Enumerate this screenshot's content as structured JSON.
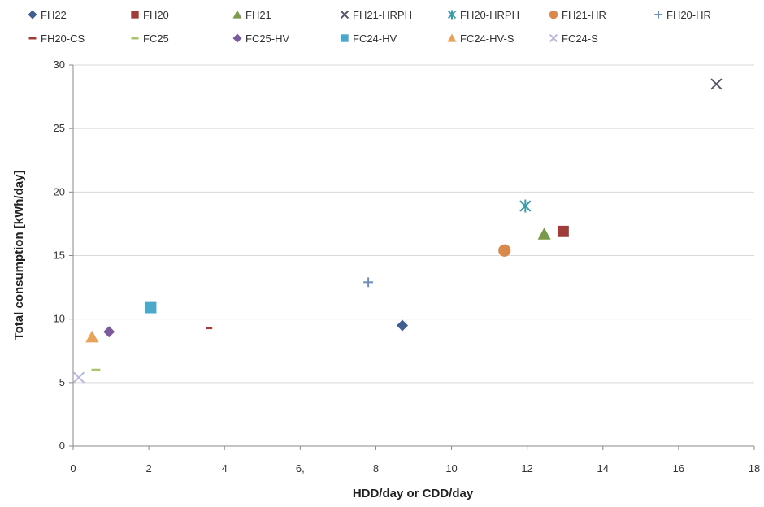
{
  "chart_data": {
    "type": "scatter",
    "title": "",
    "xlabel": "HDD/day or CDD/day",
    "ylabel": "Total consumption [kWh/day]",
    "xlim": [
      0,
      18
    ],
    "ylim": [
      0,
      30
    ],
    "xticks": [
      {
        "value": 0,
        "label": "0"
      },
      {
        "value": 2,
        "label": "2"
      },
      {
        "value": 4,
        "label": "4"
      },
      {
        "value": 6,
        "label": "6,"
      },
      {
        "value": 8,
        "label": "8"
      },
      {
        "value": 10,
        "label": "10"
      },
      {
        "value": 12,
        "label": "12"
      },
      {
        "value": 14,
        "label": "14"
      },
      {
        "value": 16,
        "label": "16"
      },
      {
        "value": 18,
        "label": "18"
      }
    ],
    "yticks": [
      {
        "value": 0,
        "label": "0"
      },
      {
        "value": 5,
        "label": "5"
      },
      {
        "value": 10,
        "label": "10"
      },
      {
        "value": 15,
        "label": "15"
      },
      {
        "value": 20,
        "label": "20"
      },
      {
        "value": 25,
        "label": "25"
      },
      {
        "value": 30,
        "label": "30"
      }
    ],
    "grid": "horizontal",
    "legend_position": "top",
    "series": [
      {
        "name": "FH22",
        "marker": "diamond",
        "color": "#3f5f8f",
        "x": 8.7,
        "y": 9.5
      },
      {
        "name": "FH20",
        "marker": "square",
        "color": "#9e3d3a",
        "x": 12.95,
        "y": 16.9
      },
      {
        "name": "FH21",
        "marker": "triangle",
        "color": "#7a9a4a",
        "x": 12.45,
        "y": 16.7
      },
      {
        "name": "FH21-HRPH",
        "marker": "x",
        "color": "#555566",
        "x": 17.0,
        "y": 28.5
      },
      {
        "name": "FH20-HRPH",
        "marker": "star",
        "color": "#3f9aa8",
        "x": 11.95,
        "y": 18.9
      },
      {
        "name": "FH21-HR",
        "marker": "circle",
        "color": "#d98a4a",
        "x": 11.4,
        "y": 15.4
      },
      {
        "name": "FH20-HR",
        "marker": "plus",
        "color": "#6a8fb8",
        "x": 7.8,
        "y": 12.9
      },
      {
        "name": "FH20-CS",
        "marker": "dash",
        "color": "#9e3d3a",
        "x": 3.6,
        "y": 9.3
      },
      {
        "name": "FC25",
        "marker": "dash",
        "color": "#a9c46a",
        "x": 0.6,
        "y": 6.0
      },
      {
        "name": "FC25-HV",
        "marker": "diamond",
        "color": "#7a5a9a",
        "x": 0.95,
        "y": 9.0
      },
      {
        "name": "FC24-HV",
        "marker": "square",
        "color": "#4aa8c8",
        "x": 2.05,
        "y": 10.9
      },
      {
        "name": "FC24-HV-S",
        "marker": "triangle",
        "color": "#e8a35a",
        "x": 0.5,
        "y": 8.6
      },
      {
        "name": "FC24-S",
        "marker": "x",
        "color": "#b8b8dc",
        "x": 0.15,
        "y": 5.4
      }
    ]
  }
}
